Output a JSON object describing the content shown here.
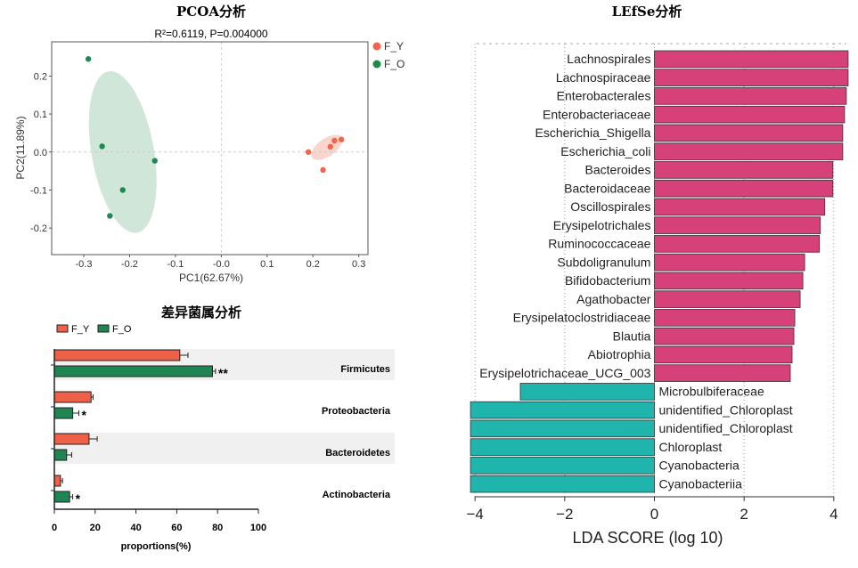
{
  "chart_data": [
    {
      "type": "scatter",
      "title": "PCOA分析",
      "subtitle": "R²=0.6119, P=0.004000",
      "xlabel": "PC1(62.67%)",
      "ylabel": "PC2(11.89%)",
      "xlim": [
        -0.37,
        0.32
      ],
      "ylim": [
        -0.27,
        0.29
      ],
      "xticks": [
        -0.3,
        -0.2,
        -0.1,
        0.0,
        0.1,
        0.2,
        0.3
      ],
      "xtick_labels": [
        "-0.3",
        "-0.2",
        "-0.1",
        "-0.0",
        "0.1",
        "0.2",
        "0.3"
      ],
      "yticks": [
        -0.2,
        -0.1,
        0.0,
        0.1,
        0.2
      ],
      "ytick_labels": [
        "-0.2",
        "-0.1",
        "0.0",
        "0.1",
        "0.2"
      ],
      "legend": "right",
      "series": [
        {
          "name": "F_Y",
          "color": "#f0654b",
          "fill": "#f9d5cc",
          "x": [
            0.19,
            0.238,
            0.247,
            0.262,
            0.222
          ],
          "y": [
            0.0,
            0.014,
            0.03,
            0.033,
            -0.047
          ]
        },
        {
          "name": "F_O",
          "color": "#1e8a4f",
          "fill": "#cfe6d8",
          "x": [
            -0.29,
            -0.26,
            -0.145,
            -0.215,
            -0.243
          ],
          "y": [
            0.245,
            0.015,
            -0.023,
            -0.1,
            -0.168
          ]
        }
      ]
    },
    {
      "type": "bar",
      "title": "差异菌属分析",
      "xlabel": "proportions(%)",
      "xlim": [
        0,
        100
      ],
      "xticks": [
        0,
        20,
        40,
        60,
        80,
        100
      ],
      "xtick_labels": [
        "0",
        "20",
        "40",
        "60",
        "80",
        "100"
      ],
      "categories": [
        "Firmicutes",
        "Proteobacteria",
        "Bacteroidetes",
        "Actinobacteria"
      ],
      "legend": "top-left",
      "series": [
        {
          "name": "F_Y",
          "color": "#ee6048",
          "values": [
            61.5,
            18,
            17,
            3
          ],
          "errors": [
            4,
            1,
            4,
            1
          ],
          "sig": [
            "",
            "",
            "",
            ""
          ]
        },
        {
          "name": "F_O",
          "color": "#1f8553",
          "values": [
            77.5,
            9,
            6,
            7.5
          ],
          "errors": [
            1.5,
            3,
            2.5,
            1.5
          ],
          "sig": [
            "**",
            "*",
            "",
            "*"
          ]
        }
      ]
    },
    {
      "type": "bar",
      "title": "LEfSe分析",
      "xlabel": "LDA SCORE (log 10)",
      "xlim": [
        -4.4,
        4.5
      ],
      "xticks": [
        -4,
        -2,
        0,
        2,
        4
      ],
      "xtick_labels": [
        "−4",
        "−2",
        "0",
        "2",
        "4"
      ],
      "grid": true,
      "categories": [
        "Lachnospirales",
        "Lachnospiraceae",
        "Enterobacterales",
        "Enterobacteriaceae",
        "Escherichia_Shigella",
        "Escherichia_coli",
        "Bacteroides",
        "Bacteroidaceae",
        "Oscillospirales",
        "Erysipelotrichales",
        "Ruminococcaceae",
        "Subdoligranulum",
        "Bifidobacterium",
        "Agathobacter",
        "Erysipelatoclostridiaceae",
        "Blautia",
        "Abiotrophia",
        "Erysipelotrichaceae_UCG_003",
        "Microbulbiferaceae",
        "unidentified_Chloroplast",
        "unidentified_Chloroplast",
        "Chloroplast",
        "Cyanobacteria",
        "Cyanobacteriia"
      ],
      "values": [
        4.32,
        4.32,
        4.28,
        4.24,
        4.2,
        4.2,
        3.98,
        3.98,
        3.8,
        3.7,
        3.68,
        3.35,
        3.31,
        3.25,
        3.13,
        3.11,
        3.07,
        3.03,
        -2.99,
        -4.1,
        -4.1,
        -4.1,
        -4.1,
        -4.1
      ],
      "colors": {
        "positive": "#d6417a",
        "negative": "#1fb5ad"
      }
    }
  ]
}
